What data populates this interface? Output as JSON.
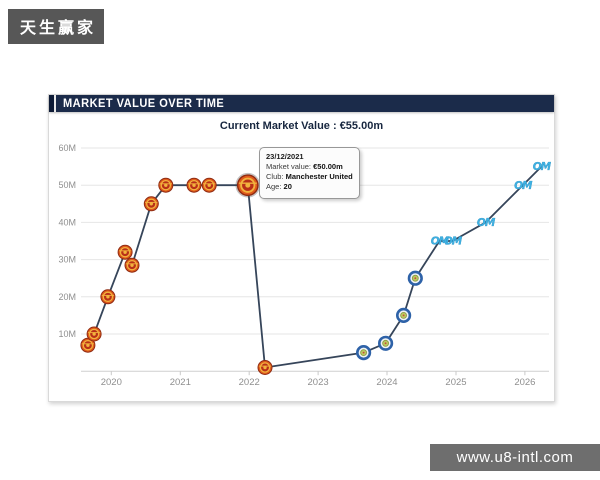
{
  "brand_banner": {
    "text": "天生赢家"
  },
  "watermark": {
    "text": "www.u8-intl.com"
  },
  "panel": {
    "header_title": "MARKET VALUE OVER TIME",
    "current_value_label": "Current Market Value : €55.00m"
  },
  "tooltip": {
    "date": "23/12/2021",
    "rows": [
      {
        "label": "Market value:",
        "value": "€50.00m"
      },
      {
        "label": "Club:",
        "value": "Manchester United"
      },
      {
        "label": "Age:",
        "value": "20"
      }
    ]
  },
  "colors": {
    "header_navy": "#1b2b4a",
    "line": "#36455a",
    "grid": "#e6e6e6",
    "axis_label": "#8f8f8f",
    "man_utd_orange": "#e05a1b",
    "man_utd_red": "#b93018",
    "man_utd_yellow": "#f2b33e",
    "blue_club_ring": "#2e62a8",
    "blue_club_center": "#bcc75f",
    "om_blue": "#3fb2e3"
  },
  "chart_data": {
    "type": "line",
    "title": "MARKET VALUE OVER TIME",
    "subtitle": "Current Market Value : €55.00m",
    "xlabel": "",
    "ylabel": "",
    "xlim": [
      2019.56,
      2026.35
    ],
    "ylim": [
      0,
      60
    ],
    "grid": true,
    "legend": "none",
    "line_color": "#36455a",
    "x_ticks": [
      2020,
      2021,
      2022,
      2023,
      2024,
      2025,
      2026
    ],
    "y_ticks": [
      {
        "value": 10,
        "label": "10M"
      },
      {
        "value": 20,
        "label": "20M"
      },
      {
        "value": 30,
        "label": "30M"
      },
      {
        "value": 40,
        "label": "40M"
      },
      {
        "value": 50,
        "label": "50M"
      },
      {
        "value": 60,
        "label": "60M"
      }
    ],
    "series": [
      {
        "name": "Market value (€m)",
        "points": [
          {
            "x": 2019.66,
            "value": 7,
            "club": "man_utd"
          },
          {
            "x": 2019.75,
            "value": 10,
            "club": "man_utd"
          },
          {
            "x": 2019.95,
            "value": 20,
            "club": "man_utd"
          },
          {
            "x": 2020.2,
            "value": 32,
            "club": "man_utd"
          },
          {
            "x": 2020.3,
            "value": 28.5,
            "club": "man_utd"
          },
          {
            "x": 2020.58,
            "value": 45,
            "club": "man_utd"
          },
          {
            "x": 2020.79,
            "value": 50,
            "club": "man_utd"
          },
          {
            "x": 2021.2,
            "value": 50,
            "club": "man_utd"
          },
          {
            "x": 2021.42,
            "value": 50,
            "club": "man_utd"
          },
          {
            "x": 2021.98,
            "value": 50,
            "club": "man_utd",
            "selected": true
          },
          {
            "x": 2022.23,
            "value": 1,
            "club": "man_utd"
          },
          {
            "x": 2023.66,
            "value": 5,
            "club": "blue_club"
          },
          {
            "x": 2023.98,
            "value": 7.5,
            "club": "blue_club"
          },
          {
            "x": 2024.24,
            "value": 15,
            "club": "blue_club"
          },
          {
            "x": 2024.41,
            "value": 25,
            "club": "blue_club"
          },
          {
            "x": 2024.76,
            "value": 35,
            "club": "om_club"
          },
          {
            "x": 2024.95,
            "value": 35,
            "club": "om_club"
          },
          {
            "x": 2025.43,
            "value": 40,
            "club": "om_club"
          },
          {
            "x": 2025.97,
            "value": 50,
            "club": "om_club"
          },
          {
            "x": 2026.24,
            "value": 55,
            "club": "om_club"
          }
        ]
      }
    ]
  }
}
